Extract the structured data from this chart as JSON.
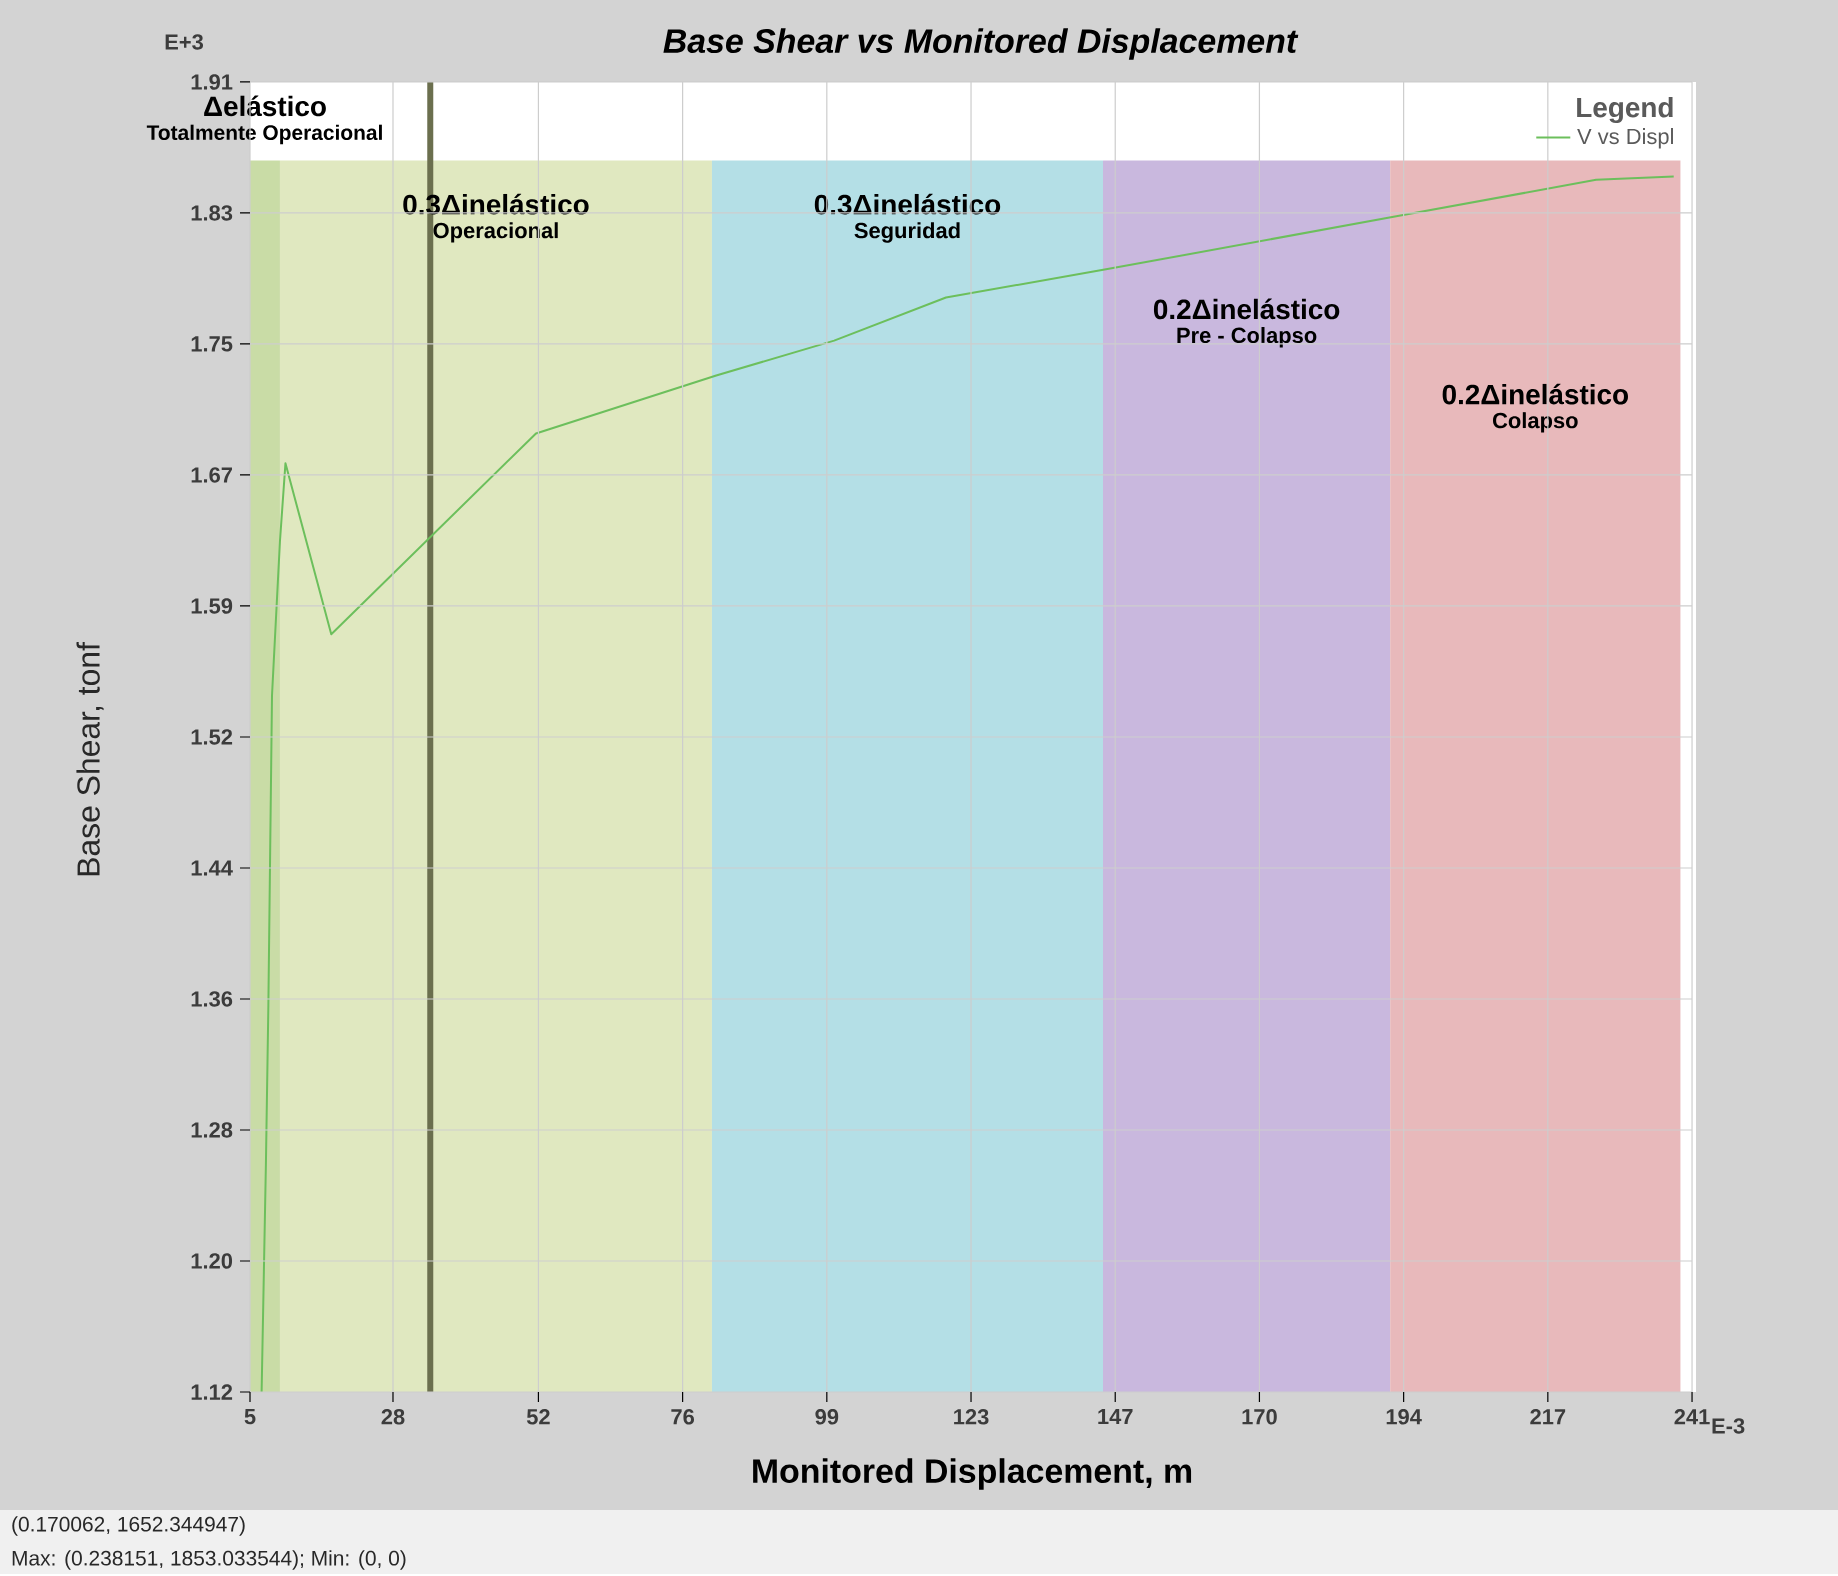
{
  "chart_data": {
    "type": "line",
    "title": "Base Shear vs Monitored Displacement",
    "xlabel": "Monitored Displacement, m",
    "ylabel": "Base Shear, tonf",
    "legend_title": "Legend",
    "xlim": [
      5,
      241
    ],
    "ylim": [
      1.12,
      1.91
    ],
    "xticks": [
      5,
      {
        "value": 28.4,
        "label": "28"
      },
      {
        "value": 52.2,
        "label": "52"
      },
      {
        "value": 75.8,
        "label": "76"
      },
      {
        "value": 99.4,
        "label": "99"
      },
      123,
      {
        "value": 146.6,
        "label": "147"
      },
      {
        "value": 170.2,
        "label": "170"
      },
      {
        "value": 193.8,
        "label": "194"
      },
      {
        "value": 217.4,
        "label": "217"
      },
      241
    ],
    "yticks": [
      1.12,
      {
        "value": 1.199,
        "label": "1.20"
      },
      {
        "value": 1.278,
        "label": "1.28"
      },
      {
        "value": 1.357,
        "label": "1.36"
      },
      {
        "value": 1.436,
        "label": "1.44"
      },
      {
        "value": 1.515,
        "label": "1.52"
      },
      {
        "value": 1.594,
        "label": "1.59"
      },
      {
        "value": 1.673,
        "label": "1.67"
      },
      {
        "value": 1.752,
        "label": "1.75"
      },
      {
        "value": 1.831,
        "label": "1.83"
      },
      1.91
    ],
    "grid": true,
    "legend": "top right",
    "marker": "none",
    "series": [
      {
        "name": "V vs Displ",
        "color": "#6cbf5c",
        "x": [
          6.9,
          7.6,
          8.0,
          8.3,
          8.6,
          9.9,
          10.8,
          18.3,
          51.8,
          81.3,
          100.6,
          118.9,
          145.1,
          192.6,
          225.3,
          238
        ],
        "values": [
          1.12,
          1.257,
          1.352,
          1.446,
          1.54,
          1.633,
          1.68,
          1.577,
          1.698,
          1.733,
          1.754,
          1.78,
          1.797,
          1.829,
          1.851,
          1.853
        ]
      }
    ],
    "ref_lines": [
      {
        "axis": "x",
        "value": 34.5,
        "color": "#6b6f4e"
      }
    ],
    "bands": [
      {
        "axis": "x",
        "from": 5,
        "to": 9.9,
        "label": "Δelástico",
        "color": "#c9dca6"
      },
      {
        "axis": "x",
        "from": 9.9,
        "to": 80.6,
        "label": "0.3Δinelástico",
        "color": "#e0e8c0"
      },
      {
        "axis": "x",
        "from": 80.6,
        "to": 144.6,
        "label": "0.3Δinelástico",
        "color": "#b4dfe6"
      },
      {
        "axis": "x",
        "from": 144.6,
        "to": 191.6,
        "label": "0.2Δinelástico",
        "color": "#c9b8de"
      },
      {
        "axis": "x",
        "from": 191.6,
        "to": 239.1,
        "label": "0.2Δinelástico",
        "color": "#e8b9bb"
      }
    ],
    "annotations": [
      "Totalmente Operacional",
      "Operacional",
      "Seguridad",
      "Pre - Colapso",
      "Colapso",
      "E+3",
      "E-3",
      "(0.170062, 1652.344947)",
      "Max: (0.238151, 1853.033544);   Min: (0, 0)"
    ]
  }
}
